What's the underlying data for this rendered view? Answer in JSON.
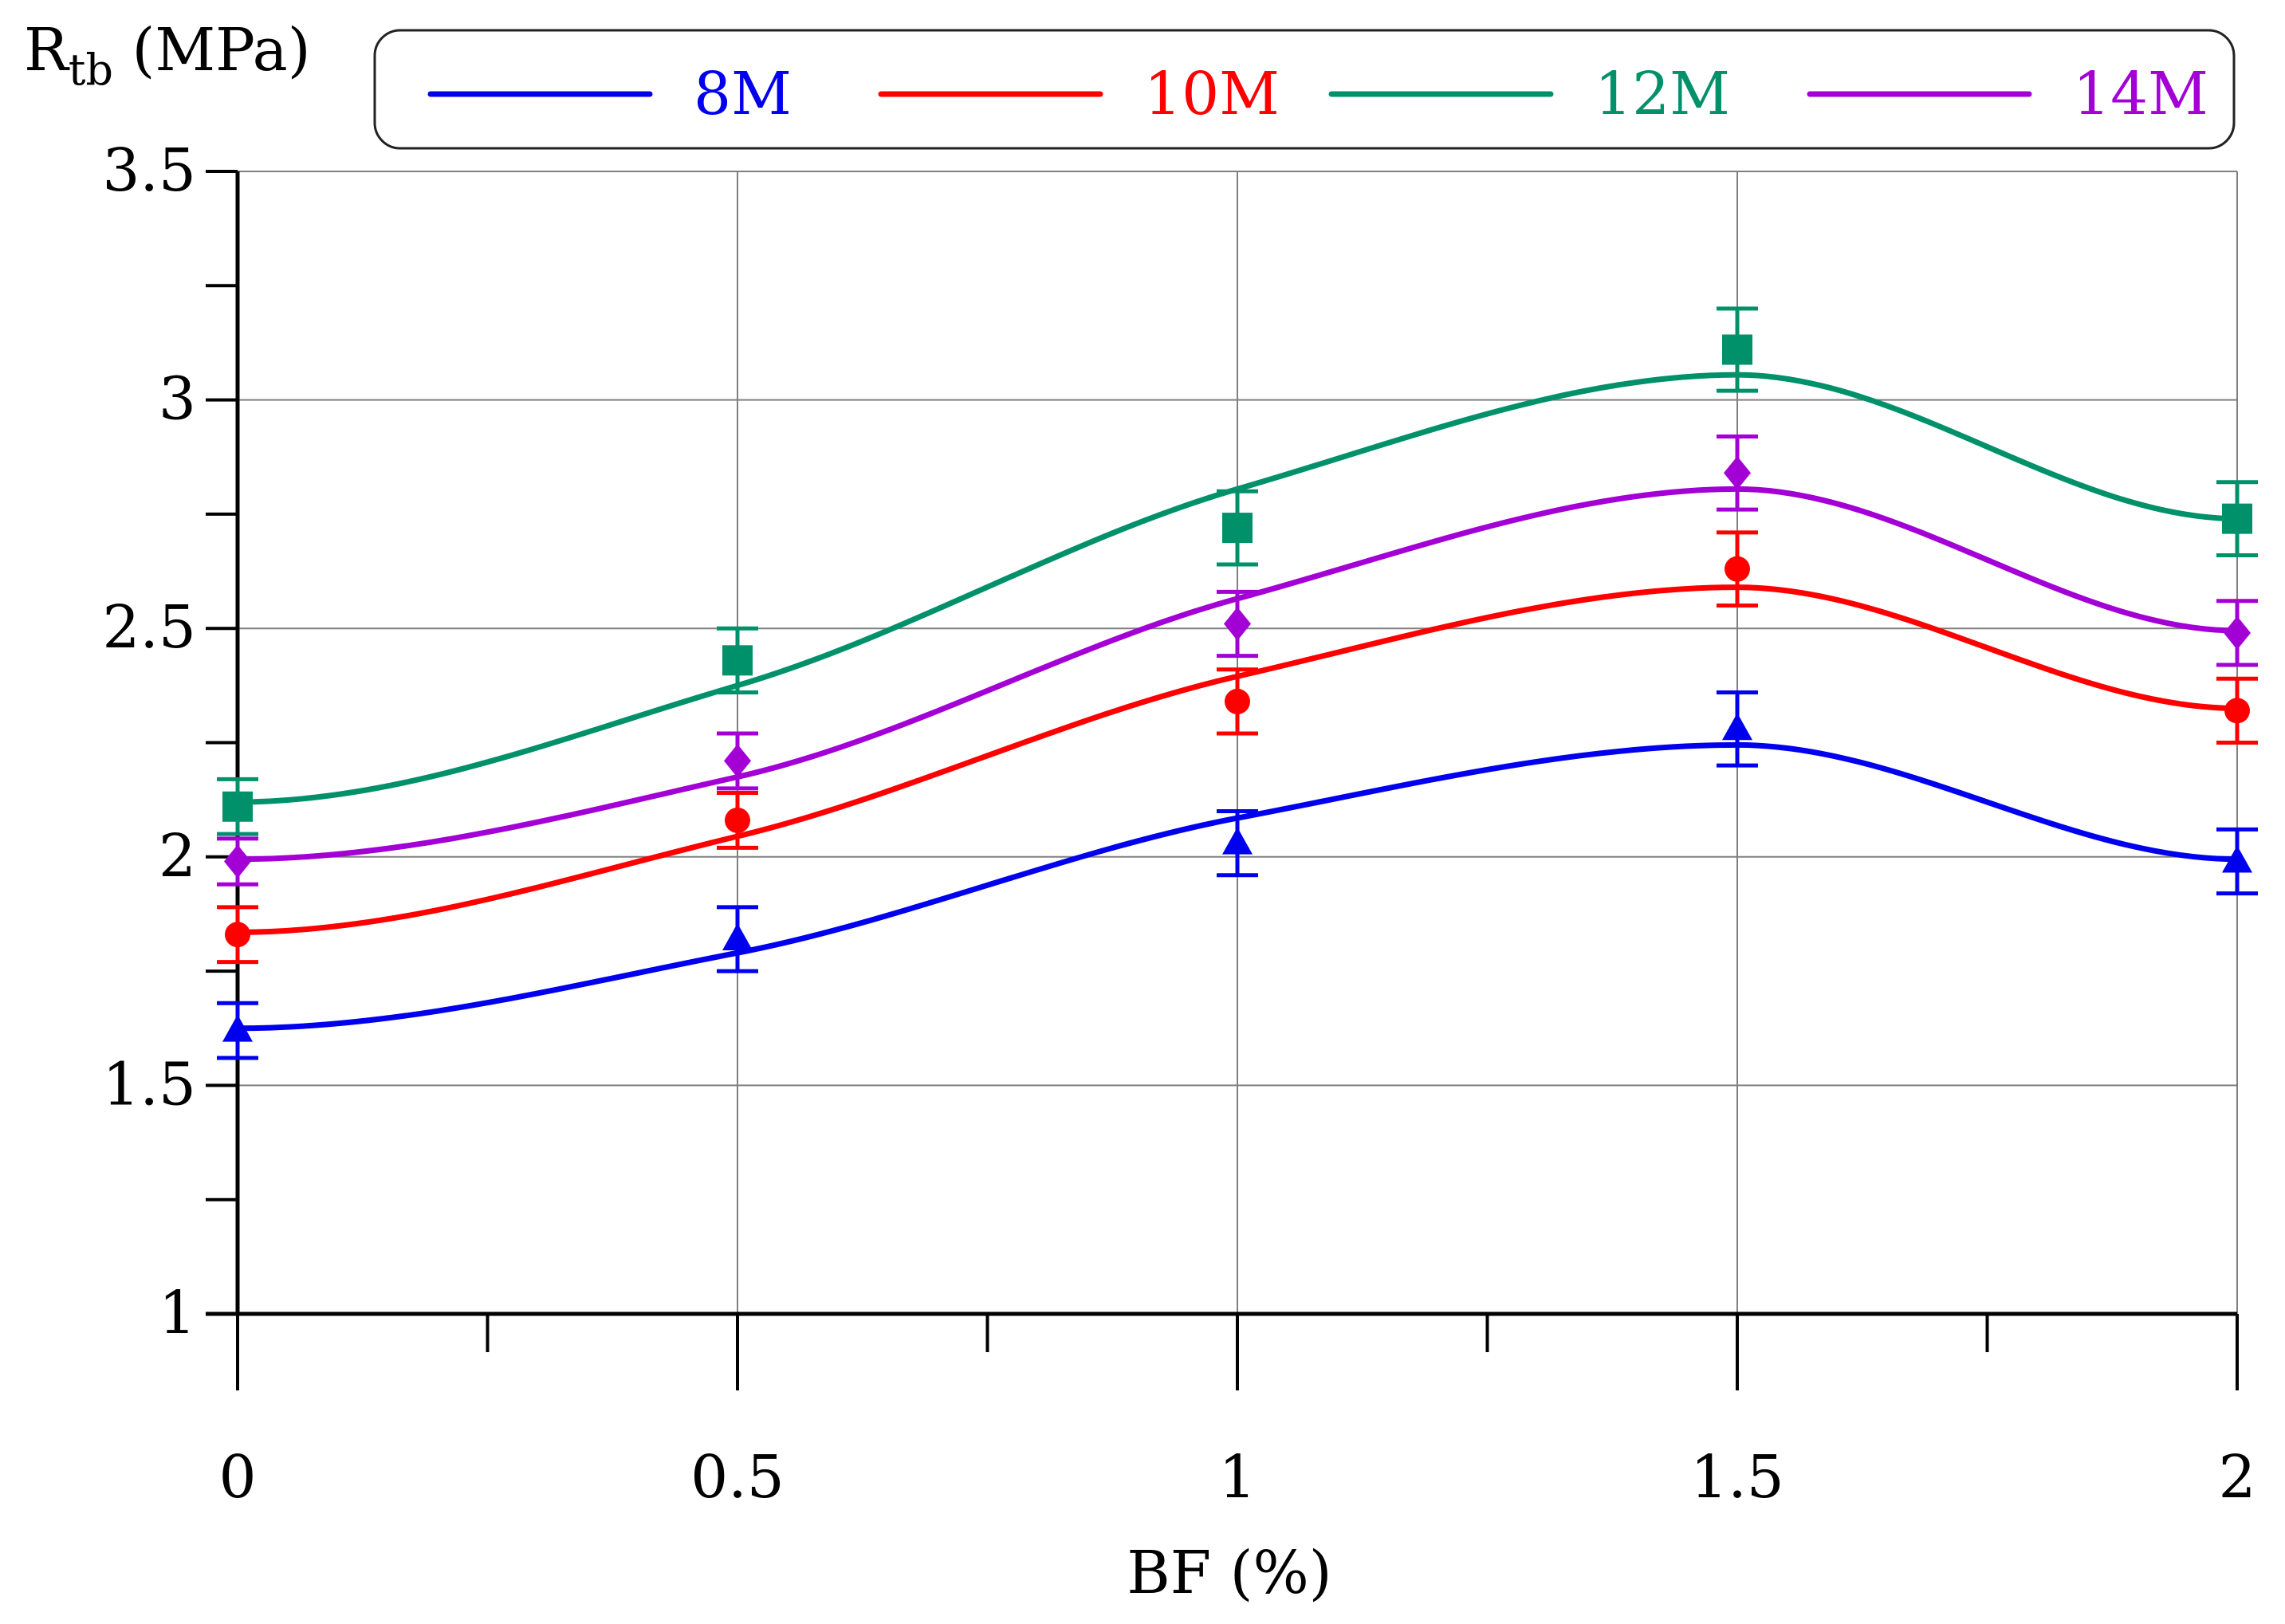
{
  "chart_data": {
    "type": "line",
    "title": "",
    "xlabel": "BF (%)",
    "ylabel": {
      "main": "R",
      "sub": "tb",
      "unit": " (MPa)"
    },
    "x": [
      0,
      0.5,
      1,
      1.5,
      2
    ],
    "xlim": [
      0,
      2
    ],
    "ylim": [
      1,
      3.5
    ],
    "x_ticks": [
      0,
      0.5,
      1,
      1.5,
      2
    ],
    "x_tick_labels": [
      "0",
      "0.5",
      "1",
      "1.5",
      "2"
    ],
    "x_minor_ticks": [
      0.25,
      0.75,
      1.25,
      1.75
    ],
    "y_ticks": [
      1,
      1.5,
      2,
      2.5,
      3,
      3.5
    ],
    "y_tick_labels": [
      "1",
      "1.5",
      "2",
      "2.5",
      "3",
      "3.5"
    ],
    "y_minor_ticks": [
      1.25,
      1.75,
      2.25,
      2.75,
      3.25
    ],
    "grid": true,
    "legend_position": "top",
    "series": [
      {
        "name": "8M",
        "color": "#0000ee",
        "marker": "triangle",
        "values": [
          1.62,
          1.82,
          2.03,
          2.28,
          1.99
        ],
        "errors": [
          0.06,
          0.07,
          0.07,
          0.08,
          0.07
        ],
        "fit": [
          1.625,
          1.79,
          2.085,
          2.245,
          1.995
        ]
      },
      {
        "name": "10M",
        "color": "#ff0000",
        "marker": "circle",
        "values": [
          1.83,
          2.08,
          2.34,
          2.63,
          2.32
        ],
        "errors": [
          0.06,
          0.06,
          0.07,
          0.08,
          0.07
        ],
        "fit": [
          1.835,
          2.045,
          2.395,
          2.59,
          2.325
        ]
      },
      {
        "name": "12M",
        "color": "#00916a",
        "marker": "square",
        "values": [
          2.11,
          2.43,
          2.72,
          3.11,
          2.74
        ],
        "errors": [
          0.06,
          0.07,
          0.08,
          0.09,
          0.08
        ],
        "fit": [
          2.12,
          2.375,
          2.805,
          3.055,
          2.74
        ]
      },
      {
        "name": "14M",
        "color": "#a300d6",
        "marker": "diamond",
        "values": [
          1.99,
          2.21,
          2.51,
          2.84,
          2.49
        ],
        "errors": [
          0.05,
          0.06,
          0.07,
          0.08,
          0.07
        ],
        "fit": [
          1.995,
          2.175,
          2.565,
          2.805,
          2.495
        ]
      }
    ]
  }
}
